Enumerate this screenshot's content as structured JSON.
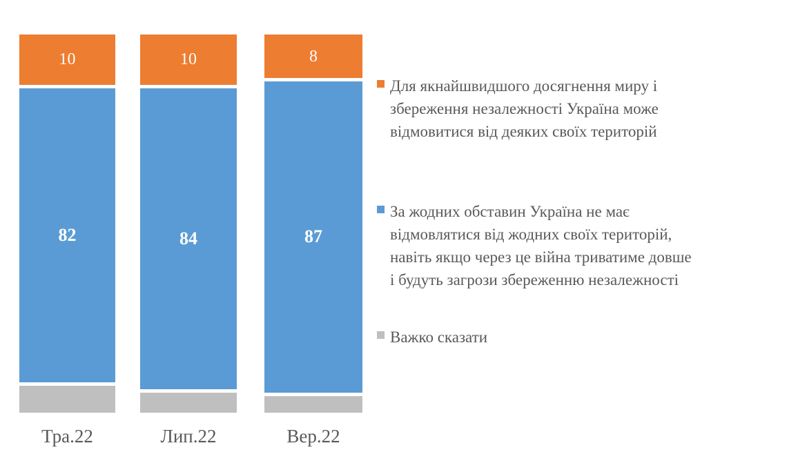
{
  "chart_data": {
    "type": "bar",
    "subtype": "stacked-100-percent",
    "orientation": "vertical",
    "title": "",
    "xlabel": "",
    "ylabel": "",
    "unit": "percent",
    "ylim": [
      0,
      100
    ],
    "grid": false,
    "axes_shown": false,
    "legend_position": "right",
    "categories": [
      "Тра.22",
      "Лип.22",
      "Вер.22"
    ],
    "series": [
      {
        "name": "Для якнайшвидшого досягнення миру і збереження незалежності Україна може відмовитися від деяких своїх територій",
        "color": "#ED7D31",
        "values": [
          10,
          10,
          8
        ],
        "labels": [
          "10",
          "10",
          "8"
        ],
        "show_labels": true,
        "label_style": "regular",
        "stack_position": "top"
      },
      {
        "name": "За жодних обставин Україна не має відмовлятися від жодних своїх територій, навіть якщо через це війна триватиме довше і будуть загрози збереженню незалежності",
        "color": "#5B9BD5",
        "values": [
          82,
          84,
          87
        ],
        "labels": [
          "82",
          "84",
          "87"
        ],
        "show_labels": true,
        "label_style": "bold",
        "stack_position": "middle"
      },
      {
        "name": "Важко сказати",
        "color": "#BFBFBF",
        "values": [
          8,
          6,
          5
        ],
        "labels": [
          "",
          "",
          ""
        ],
        "show_labels": false,
        "label_style": "regular",
        "stack_position": "bottom"
      }
    ]
  },
  "legend": {
    "entries": [
      {
        "color": "#ED7D31",
        "icon": "orange-square-marker",
        "lines": [
          "Для якнайшвидшого досягнення миру і",
          "збереження незалежності Україна може",
          "відмовитися від деяких своїх територій"
        ]
      },
      {
        "color": "#5B9BD5",
        "icon": "blue-square-marker",
        "lines": [
          "За жодних обставин Україна не має",
          "відмовлятися від жодних своїх територій,",
          "навіть якщо через це війна триватиме довше",
          "і будуть загрози збереженню незалежності"
        ]
      },
      {
        "color": "#BFBFBF",
        "icon": "gray-square-marker",
        "lines": [
          "Важко сказати"
        ]
      }
    ]
  },
  "colors": {
    "background": "#FFFFFF",
    "segment_gap": "#FFFFFF",
    "axis_text": "#595959",
    "legend_text": "#595959",
    "value_label_text": "#FFFFFF"
  }
}
